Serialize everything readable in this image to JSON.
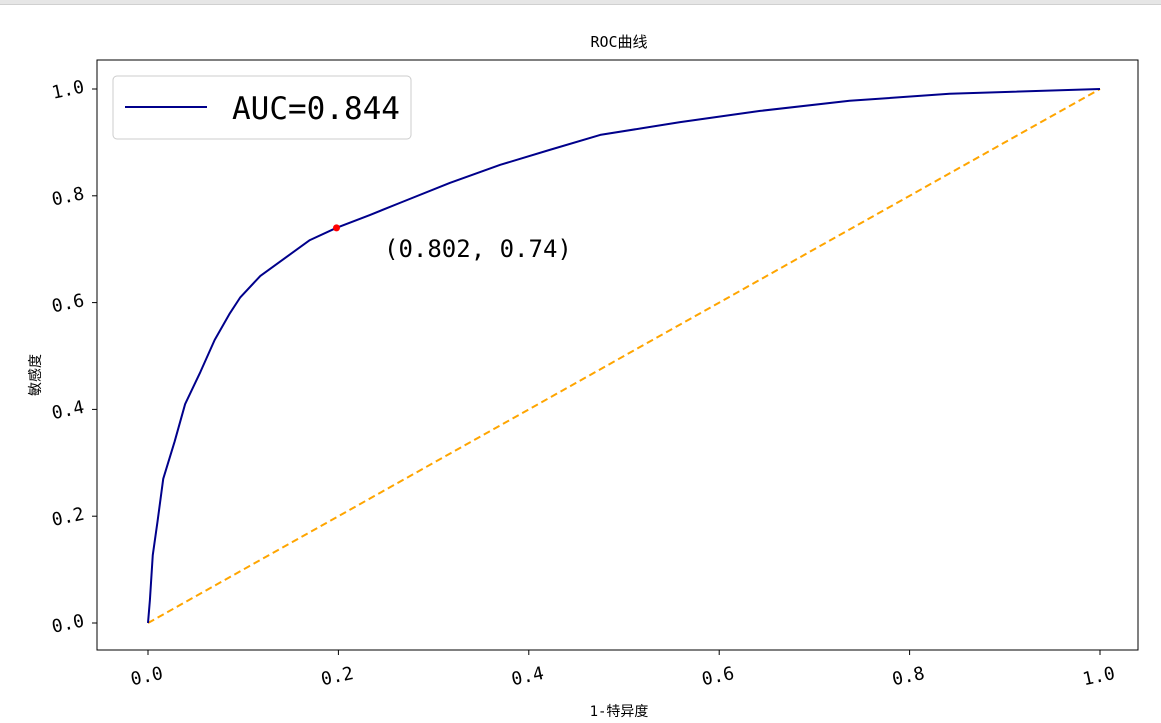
{
  "chart_data": {
    "type": "line",
    "title": "ROC曲线",
    "xlabel": "1-特异度",
    "ylabel": "敏感度",
    "xlim": [
      -0.05,
      1.04
    ],
    "ylim": [
      -0.05,
      1.06
    ],
    "xticks": [
      "0.0",
      "0.2",
      "0.4",
      "0.6",
      "0.8",
      "1.0"
    ],
    "yticks": [
      "0.0",
      "0.2",
      "0.4",
      "0.6",
      "0.8",
      "1.0"
    ],
    "legend": {
      "position": "top-left",
      "entries": [
        "AUC=0.844"
      ]
    },
    "colors": {
      "roc": "#00008b",
      "diagonal": "#ffa500",
      "point": "#ff0000"
    },
    "series": [
      {
        "name": "AUC=0.844",
        "style": "solid",
        "x": [
          0,
          0.002,
          0.005,
          0.01,
          0.016,
          0.028,
          0.039,
          0.055,
          0.07,
          0.086,
          0.097,
          0.118,
          0.149,
          0.17,
          0.198,
          0.233,
          0.265,
          0.317,
          0.37,
          0.422,
          0.475,
          0.559,
          0.643,
          0.737,
          0.842,
          1.0
        ],
        "y": [
          0,
          0.043,
          0.127,
          0.19,
          0.27,
          0.34,
          0.41,
          0.47,
          0.53,
          0.58,
          0.61,
          0.65,
          0.69,
          0.717,
          0.74,
          0.764,
          0.787,
          0.824,
          0.858,
          0.886,
          0.914,
          0.938,
          0.959,
          0.978,
          0.991,
          1.0
        ]
      },
      {
        "name": "diagonal",
        "style": "dashed",
        "x": [
          0,
          1
        ],
        "y": [
          0,
          1
        ]
      }
    ],
    "annotations": [
      {
        "text": "(0.802, 0.74)",
        "point": [
          0.198,
          0.74
        ],
        "text_at": [
          0.25,
          0.7
        ]
      }
    ]
  }
}
